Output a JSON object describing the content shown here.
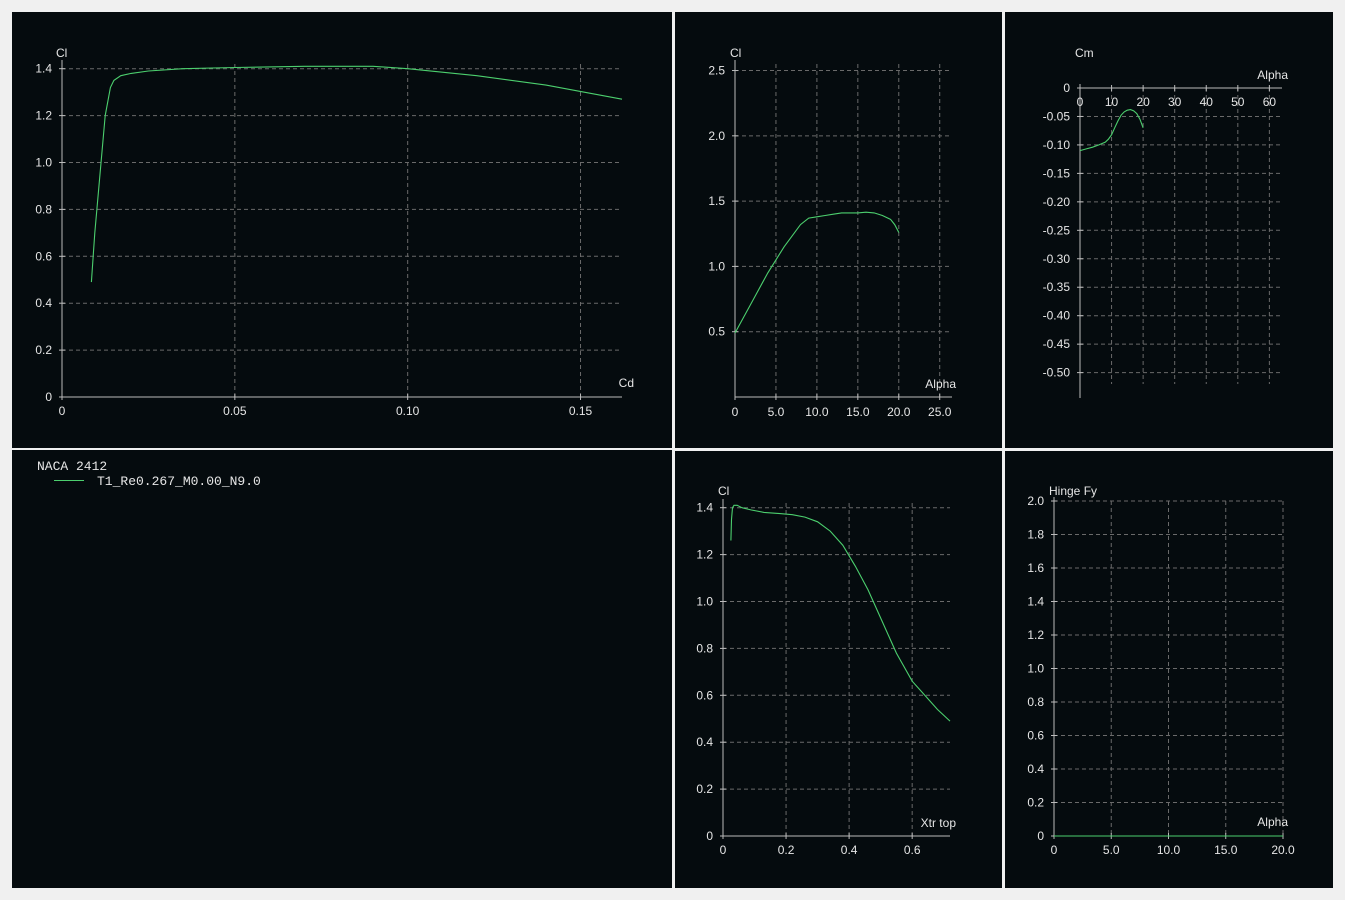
{
  "legend": {
    "title": "NACA 2412",
    "series_label": "T1_Re0.267_M0.00_N9.0",
    "line_color": "#4ccf6e"
  },
  "colors": {
    "background": "#050b0e",
    "axis": "#bbbbbb",
    "grid": "#6a6a6a",
    "text": "#e6e6e6",
    "curve": "#4ccf6e"
  },
  "chart_data": [
    {
      "id": "cl-cd",
      "type": "line",
      "title": "",
      "xlabel": "Cd",
      "ylabel": "Cl",
      "xlim": [
        0,
        0.162
      ],
      "ylim": [
        0,
        1.42
      ],
      "grid": true,
      "x_ticks": [
        0,
        0.05,
        0.1,
        0.15
      ],
      "x_tick_labels": [
        "0",
        "0.05",
        "0.10",
        "0.15"
      ],
      "y_ticks": [
        0,
        0.2,
        0.4,
        0.6,
        0.8,
        1.0,
        1.2,
        1.4
      ],
      "y_tick_labels": [
        "0",
        "0.2",
        "0.4",
        "0.6",
        "0.8",
        "1.0",
        "1.2",
        "1.4"
      ],
      "series": [
        {
          "x": [
            0.0085,
            0.0095,
            0.011,
            0.0125,
            0.014,
            0.015,
            0.017,
            0.02,
            0.025,
            0.035,
            0.05,
            0.07,
            0.09,
            0.1,
            0.12,
            0.14,
            0.162
          ],
          "y": [
            0.49,
            0.7,
            0.95,
            1.2,
            1.32,
            1.35,
            1.37,
            1.38,
            1.39,
            1.4,
            1.405,
            1.41,
            1.41,
            1.4,
            1.37,
            1.33,
            1.27
          ]
        }
      ]
    },
    {
      "id": "cl-alpha",
      "type": "line",
      "title": "",
      "xlabel": "Alpha",
      "ylabel": "Cl",
      "xlim": [
        0,
        26.5
      ],
      "ylim": [
        0,
        2.55
      ],
      "grid": true,
      "x_ticks": [
        0,
        5,
        10,
        15,
        20,
        25
      ],
      "x_tick_labels": [
        "0",
        "5.0",
        "10.0",
        "15.0",
        "20.0",
        "25.0"
      ],
      "y_ticks": [
        0.5,
        1.0,
        1.5,
        2.0,
        2.5
      ],
      "y_tick_labels": [
        "0.5",
        "1.0",
        "1.5",
        "2.0",
        "2.5"
      ],
      "series": [
        {
          "x": [
            0,
            2,
            4,
            6,
            8,
            9,
            10,
            11,
            12,
            13,
            14,
            15,
            16,
            17,
            18,
            19,
            19.5,
            20
          ],
          "y": [
            0.49,
            0.72,
            0.95,
            1.15,
            1.32,
            1.37,
            1.38,
            1.39,
            1.4,
            1.41,
            1.41,
            1.41,
            1.415,
            1.41,
            1.39,
            1.36,
            1.32,
            1.26
          ]
        }
      ]
    },
    {
      "id": "cm-alpha",
      "type": "line",
      "title": "",
      "xlabel": "Alpha",
      "ylabel": "Cm",
      "xlim": [
        0,
        64
      ],
      "ylim": [
        -0.52,
        0
      ],
      "grid": true,
      "x_ticks": [
        0,
        10,
        20,
        30,
        40,
        50,
        60
      ],
      "x_tick_labels": [
        "0",
        "10",
        "20",
        "30",
        "40",
        "50",
        "60"
      ],
      "y_ticks": [
        0,
        -0.05,
        -0.1,
        -0.15,
        -0.2,
        -0.25,
        -0.3,
        -0.35,
        -0.4,
        -0.45,
        -0.5
      ],
      "y_tick_labels": [
        "0",
        "-0.05",
        "-0.10",
        "-0.15",
        "-0.20",
        "-0.25",
        "-0.30",
        "-0.35",
        "-0.40",
        "-0.45",
        "-0.50"
      ],
      "series": [
        {
          "x": [
            0,
            2,
            4,
            6,
            8,
            9,
            10,
            11,
            12,
            13,
            14,
            15,
            16,
            17,
            18,
            19,
            20
          ],
          "y": [
            -0.11,
            -0.107,
            -0.104,
            -0.1,
            -0.095,
            -0.09,
            -0.082,
            -0.07,
            -0.058,
            -0.048,
            -0.042,
            -0.039,
            -0.038,
            -0.04,
            -0.045,
            -0.055,
            -0.07
          ]
        }
      ]
    },
    {
      "id": "cl-xtr",
      "type": "line",
      "title": "",
      "xlabel": "Xtr top",
      "ylabel": "Cl",
      "xlim": [
        0,
        0.72
      ],
      "ylim": [
        0,
        1.42
      ],
      "grid": true,
      "x_ticks": [
        0,
        0.2,
        0.4,
        0.6
      ],
      "x_tick_labels": [
        "0",
        "0.2",
        "0.4",
        "0.6"
      ],
      "y_ticks": [
        0,
        0.2,
        0.4,
        0.6,
        0.8,
        1.0,
        1.2,
        1.4
      ],
      "y_tick_labels": [
        "0",
        "0.2",
        "0.4",
        "0.6",
        "0.8",
        "1.0",
        "1.2",
        "1.4"
      ],
      "series": [
        {
          "x": [
            0.025,
            0.027,
            0.03,
            0.035,
            0.045,
            0.06,
            0.09,
            0.13,
            0.18,
            0.22,
            0.26,
            0.3,
            0.34,
            0.38,
            0.42,
            0.46,
            0.5,
            0.55,
            0.6,
            0.64,
            0.68,
            0.72
          ],
          "y": [
            1.26,
            1.35,
            1.4,
            1.41,
            1.41,
            1.4,
            1.39,
            1.38,
            1.375,
            1.37,
            1.36,
            1.34,
            1.3,
            1.24,
            1.15,
            1.05,
            0.93,
            0.78,
            0.66,
            0.6,
            0.54,
            0.49
          ]
        }
      ]
    },
    {
      "id": "hinge-alpha",
      "type": "line",
      "title": "",
      "xlabel": "Alpha",
      "ylabel": "Hinge Fy",
      "xlim": [
        0,
        20
      ],
      "ylim": [
        0,
        2.0
      ],
      "grid": true,
      "x_ticks": [
        0,
        5,
        10,
        15,
        20
      ],
      "x_tick_labels": [
        "0",
        "5.0",
        "10.0",
        "15.0",
        "20.0"
      ],
      "y_ticks": [
        0,
        0.2,
        0.4,
        0.6,
        0.8,
        1.0,
        1.2,
        1.4,
        1.6,
        1.8,
        2.0
      ],
      "y_tick_labels": [
        "0",
        "0.2",
        "0.4",
        "0.6",
        "0.8",
        "1.0",
        "1.2",
        "1.4",
        "1.6",
        "1.8",
        "2.0"
      ],
      "series": [
        {
          "x": [
            0,
            5,
            10,
            15,
            20
          ],
          "y": [
            0,
            0,
            0,
            0,
            0
          ]
        }
      ]
    }
  ]
}
